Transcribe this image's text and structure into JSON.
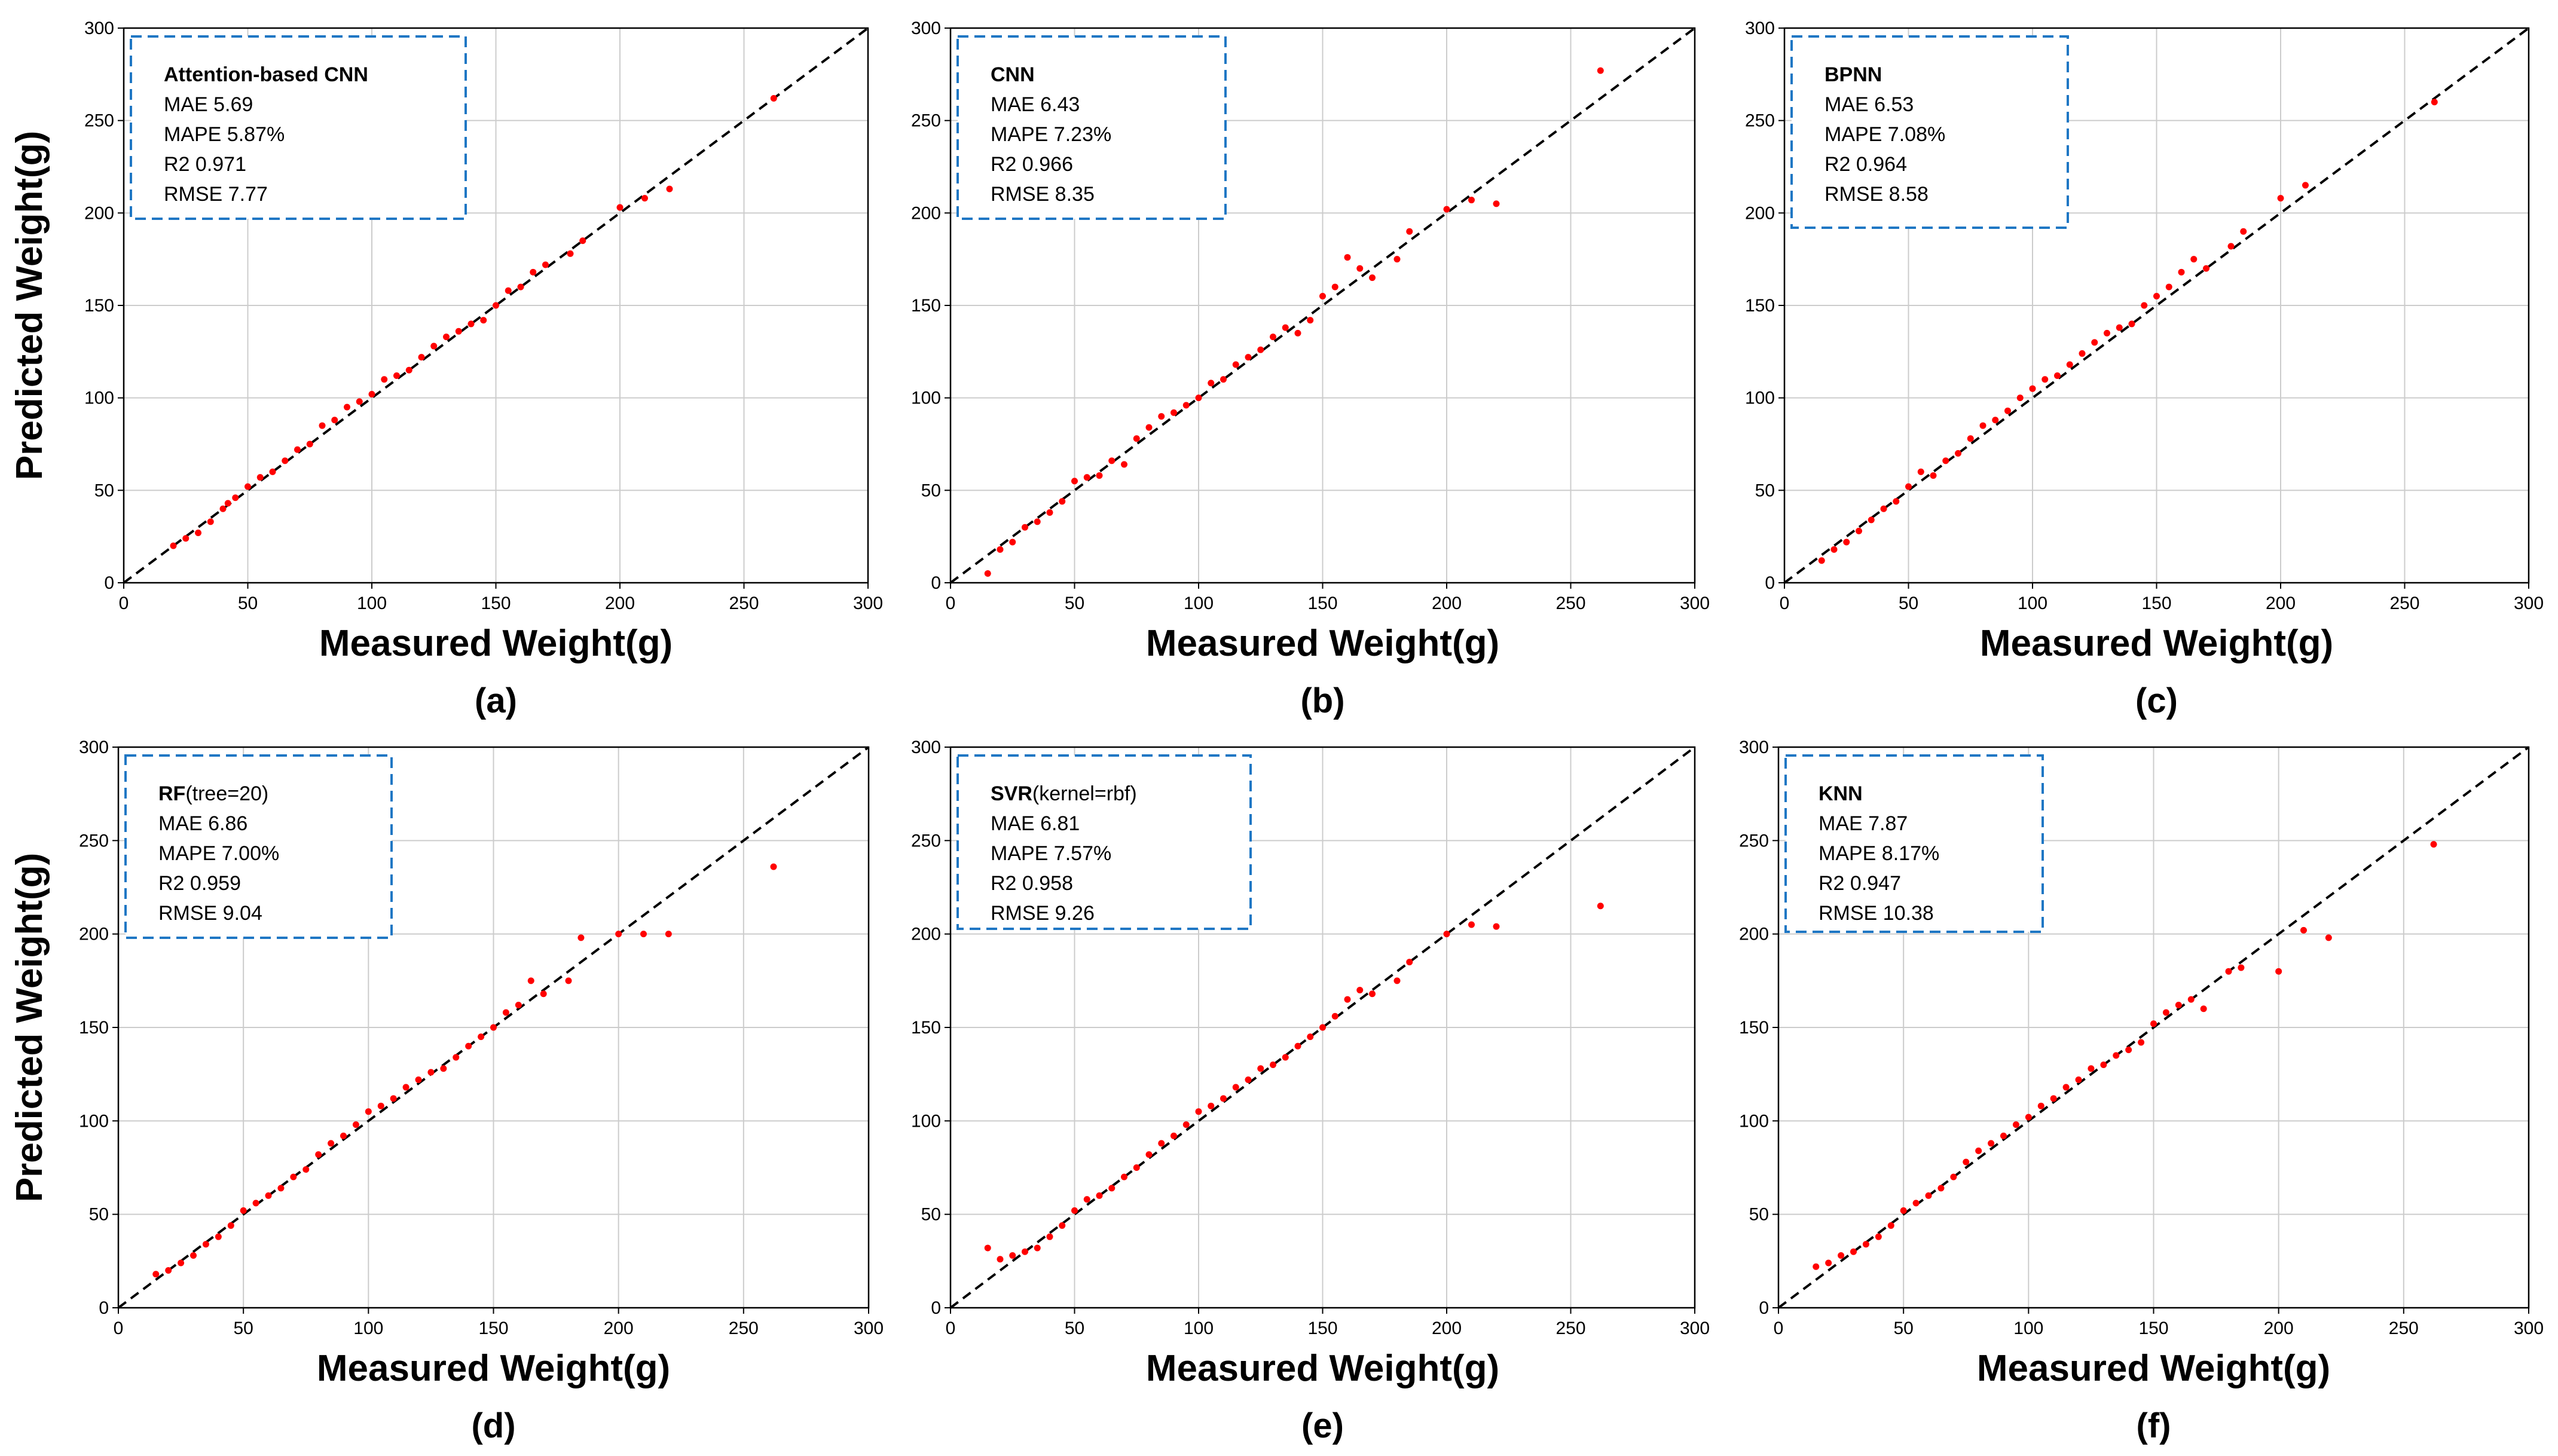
{
  "figure": {
    "x_axis_title": "Measured Weight(g)",
    "y_axis_title": "Predicted Weight(g)",
    "colors": {
      "points": "#ff0000",
      "diagonal": "#000000",
      "legend_border": "#1f77c4",
      "grid": "#cccccc"
    }
  },
  "chart_data": [
    {
      "type": "scatter",
      "panel": "(a)",
      "legend": {
        "name": "Attention-based CNN",
        "suffix": "",
        "mae": "MAE  5.69",
        "mape": "MAPE  5.87%",
        "r2": "R2  0.971",
        "rmse": "RMSE  7.77"
      },
      "xlabel": "Measured Weight(g)",
      "ylabel": "Predicted Weight(g)",
      "xlim": [
        0,
        300
      ],
      "ylim": [
        0,
        300
      ],
      "xticks": [
        0,
        50,
        100,
        150,
        200,
        250,
        300
      ],
      "yticks": [
        0,
        50,
        100,
        150,
        200,
        250,
        300
      ],
      "reference_line": "y = x",
      "grid": true,
      "points": [
        [
          20,
          20
        ],
        [
          25,
          24
        ],
        [
          30,
          27
        ],
        [
          35,
          33
        ],
        [
          40,
          40
        ],
        [
          42,
          43
        ],
        [
          45,
          46
        ],
        [
          50,
          52
        ],
        [
          55,
          57
        ],
        [
          60,
          60
        ],
        [
          65,
          66
        ],
        [
          70,
          72
        ],
        [
          75,
          75
        ],
        [
          80,
          85
        ],
        [
          85,
          88
        ],
        [
          90,
          95
        ],
        [
          95,
          98
        ],
        [
          100,
          102
        ],
        [
          105,
          110
        ],
        [
          110,
          112
        ],
        [
          115,
          115
        ],
        [
          120,
          122
        ],
        [
          125,
          128
        ],
        [
          130,
          133
        ],
        [
          135,
          136
        ],
        [
          140,
          140
        ],
        [
          145,
          142
        ],
        [
          150,
          150
        ],
        [
          155,
          158
        ],
        [
          160,
          160
        ],
        [
          165,
          168
        ],
        [
          170,
          172
        ],
        [
          180,
          178
        ],
        [
          185,
          185
        ],
        [
          200,
          203
        ],
        [
          210,
          208
        ],
        [
          220,
          213
        ],
        [
          262,
          262
        ]
      ]
    },
    {
      "type": "scatter",
      "panel": "(b)",
      "legend": {
        "name": "CNN",
        "suffix": "",
        "mae": "MAE  6.43",
        "mape": "MAPE  7.23%",
        "r2": "R2  0.966",
        "rmse": "RMSE  8.35"
      },
      "xlabel": "Measured Weight(g)",
      "ylabel": "Predicted Weight(g)",
      "xlim": [
        0,
        300
      ],
      "ylim": [
        0,
        300
      ],
      "xticks": [
        0,
        50,
        100,
        150,
        200,
        250,
        300
      ],
      "yticks": [
        0,
        50,
        100,
        150,
        200,
        250,
        300
      ],
      "reference_line": "y = x",
      "grid": true,
      "points": [
        [
          15,
          5
        ],
        [
          20,
          18
        ],
        [
          25,
          22
        ],
        [
          30,
          30
        ],
        [
          35,
          33
        ],
        [
          40,
          38
        ],
        [
          45,
          44
        ],
        [
          50,
          55
        ],
        [
          55,
          57
        ],
        [
          60,
          58
        ],
        [
          65,
          66
        ],
        [
          70,
          64
        ],
        [
          75,
          78
        ],
        [
          80,
          84
        ],
        [
          85,
          90
        ],
        [
          90,
          92
        ],
        [
          95,
          96
        ],
        [
          100,
          100
        ],
        [
          105,
          108
        ],
        [
          110,
          110
        ],
        [
          115,
          118
        ],
        [
          120,
          122
        ],
        [
          125,
          126
        ],
        [
          130,
          133
        ],
        [
          135,
          138
        ],
        [
          140,
          135
        ],
        [
          145,
          142
        ],
        [
          150,
          155
        ],
        [
          155,
          160
        ],
        [
          160,
          176
        ],
        [
          165,
          170
        ],
        [
          170,
          165
        ],
        [
          180,
          175
        ],
        [
          185,
          190
        ],
        [
          200,
          202
        ],
        [
          210,
          207
        ],
        [
          220,
          205
        ],
        [
          262,
          277
        ]
      ]
    },
    {
      "type": "scatter",
      "panel": "(c)",
      "legend": {
        "name": "BPNN",
        "suffix": "",
        "mae": "MAE  6.53",
        "mape": "MAPE  7.08%",
        "r2": "R2  0.964",
        "rmse": "RMSE  8.58"
      },
      "xlabel": "Measured Weight(g)",
      "ylabel": "Predicted Weight(g)",
      "xlim": [
        0,
        300
      ],
      "ylim": [
        0,
        300
      ],
      "xticks": [
        0,
        50,
        100,
        150,
        200,
        250,
        300
      ],
      "yticks": [
        0,
        50,
        100,
        150,
        200,
        250,
        300
      ],
      "reference_line": "y = x",
      "grid": true,
      "points": [
        [
          15,
          12
        ],
        [
          20,
          18
        ],
        [
          25,
          22
        ],
        [
          30,
          28
        ],
        [
          35,
          34
        ],
        [
          40,
          40
        ],
        [
          45,
          44
        ],
        [
          50,
          52
        ],
        [
          55,
          60
        ],
        [
          60,
          58
        ],
        [
          65,
          66
        ],
        [
          70,
          70
        ],
        [
          75,
          78
        ],
        [
          80,
          85
        ],
        [
          85,
          88
        ],
        [
          90,
          93
        ],
        [
          95,
          100
        ],
        [
          100,
          105
        ],
        [
          105,
          110
        ],
        [
          110,
          112
        ],
        [
          115,
          118
        ],
        [
          120,
          124
        ],
        [
          125,
          130
        ],
        [
          130,
          135
        ],
        [
          135,
          138
        ],
        [
          140,
          140
        ],
        [
          145,
          150
        ],
        [
          150,
          155
        ],
        [
          155,
          160
        ],
        [
          160,
          168
        ],
        [
          165,
          175
        ],
        [
          170,
          170
        ],
        [
          180,
          182
        ],
        [
          185,
          190
        ],
        [
          200,
          208
        ],
        [
          210,
          215
        ],
        [
          262,
          260
        ]
      ]
    },
    {
      "type": "scatter",
      "panel": "(d)",
      "legend": {
        "name": "RF",
        "suffix": "(tree=20)",
        "mae": "MAE  6.86",
        "mape": "MAPE  7.00%",
        "r2": "R2  0.959",
        "rmse": "RMSE  9.04"
      },
      "xlabel": "Measured Weight(g)",
      "ylabel": "Predicted Weight(g)",
      "xlim": [
        0,
        300
      ],
      "ylim": [
        0,
        300
      ],
      "xticks": [
        0,
        50,
        100,
        150,
        200,
        250,
        300
      ],
      "yticks": [
        0,
        50,
        100,
        150,
        200,
        250,
        300
      ],
      "reference_line": "y = x",
      "grid": true,
      "points": [
        [
          15,
          18
        ],
        [
          20,
          20
        ],
        [
          25,
          24
        ],
        [
          30,
          28
        ],
        [
          35,
          34
        ],
        [
          40,
          38
        ],
        [
          45,
          44
        ],
        [
          50,
          52
        ],
        [
          55,
          56
        ],
        [
          60,
          60
        ],
        [
          65,
          64
        ],
        [
          70,
          70
        ],
        [
          75,
          74
        ],
        [
          80,
          82
        ],
        [
          85,
          88
        ],
        [
          90,
          92
        ],
        [
          95,
          98
        ],
        [
          100,
          105
        ],
        [
          105,
          108
        ],
        [
          110,
          112
        ],
        [
          115,
          118
        ],
        [
          120,
          122
        ],
        [
          125,
          126
        ],
        [
          130,
          128
        ],
        [
          135,
          134
        ],
        [
          140,
          140
        ],
        [
          145,
          145
        ],
        [
          150,
          150
        ],
        [
          155,
          158
        ],
        [
          160,
          162
        ],
        [
          165,
          175
        ],
        [
          170,
          168
        ],
        [
          180,
          175
        ],
        [
          185,
          198
        ],
        [
          200,
          200
        ],
        [
          210,
          200
        ],
        [
          220,
          200
        ],
        [
          262,
          236
        ]
      ]
    },
    {
      "type": "scatter",
      "panel": "(e)",
      "legend": {
        "name": "SVR",
        "suffix": "(kernel=rbf)",
        "mae": "MAE  6.81",
        "mape": "MAPE  7.57%",
        "r2": "R2  0.958",
        "rmse": "RMSE  9.26"
      },
      "xlabel": "Measured Weight(g)",
      "ylabel": "Predicted Weight(g)",
      "xlim": [
        0,
        300
      ],
      "ylim": [
        0,
        300
      ],
      "xticks": [
        0,
        50,
        100,
        150,
        200,
        250,
        300
      ],
      "yticks": [
        0,
        50,
        100,
        150,
        200,
        250,
        300
      ],
      "reference_line": "y = x",
      "grid": true,
      "points": [
        [
          15,
          32
        ],
        [
          20,
          26
        ],
        [
          25,
          28
        ],
        [
          30,
          30
        ],
        [
          35,
          32
        ],
        [
          40,
          38
        ],
        [
          45,
          44
        ],
        [
          50,
          52
        ],
        [
          55,
          58
        ],
        [
          60,
          60
        ],
        [
          65,
          64
        ],
        [
          70,
          70
        ],
        [
          75,
          75
        ],
        [
          80,
          82
        ],
        [
          85,
          88
        ],
        [
          90,
          92
        ],
        [
          95,
          98
        ],
        [
          100,
          105
        ],
        [
          105,
          108
        ],
        [
          110,
          112
        ],
        [
          115,
          118
        ],
        [
          120,
          122
        ],
        [
          125,
          128
        ],
        [
          130,
          130
        ],
        [
          135,
          134
        ],
        [
          140,
          140
        ],
        [
          145,
          145
        ],
        [
          150,
          150
        ],
        [
          155,
          156
        ],
        [
          160,
          165
        ],
        [
          165,
          170
        ],
        [
          170,
          168
        ],
        [
          180,
          175
        ],
        [
          185,
          185
        ],
        [
          200,
          200
        ],
        [
          210,
          205
        ],
        [
          220,
          204
        ],
        [
          262,
          215
        ]
      ]
    },
    {
      "type": "scatter",
      "panel": "(f)",
      "legend": {
        "name": "KNN",
        "suffix": "",
        "mae": "MAE  7.87",
        "mape": "MAPE  8.17%",
        "r2": "R2  0.947",
        "rmse": "RMSE  10.38"
      },
      "xlabel": "Measured Weight(g)",
      "ylabel": "Predicted Weight(g)",
      "xlim": [
        0,
        300
      ],
      "ylim": [
        0,
        300
      ],
      "xticks": [
        0,
        50,
        100,
        150,
        200,
        250,
        300
      ],
      "yticks": [
        0,
        50,
        100,
        150,
        200,
        250,
        300
      ],
      "reference_line": "y = x",
      "grid": true,
      "points": [
        [
          15,
          22
        ],
        [
          20,
          24
        ],
        [
          25,
          28
        ],
        [
          30,
          30
        ],
        [
          35,
          34
        ],
        [
          40,
          38
        ],
        [
          45,
          44
        ],
        [
          50,
          52
        ],
        [
          55,
          56
        ],
        [
          60,
          60
        ],
        [
          65,
          64
        ],
        [
          70,
          70
        ],
        [
          75,
          78
        ],
        [
          80,
          84
        ],
        [
          85,
          88
        ],
        [
          90,
          92
        ],
        [
          95,
          98
        ],
        [
          100,
          102
        ],
        [
          105,
          108
        ],
        [
          110,
          112
        ],
        [
          115,
          118
        ],
        [
          120,
          122
        ],
        [
          125,
          128
        ],
        [
          130,
          130
        ],
        [
          135,
          135
        ],
        [
          140,
          138
        ],
        [
          145,
          142
        ],
        [
          150,
          152
        ],
        [
          155,
          158
        ],
        [
          160,
          162
        ],
        [
          165,
          165
        ],
        [
          170,
          160
        ],
        [
          180,
          180
        ],
        [
          185,
          182
        ],
        [
          200,
          180
        ],
        [
          210,
          202
        ],
        [
          220,
          198
        ],
        [
          262,
          248
        ]
      ]
    }
  ]
}
